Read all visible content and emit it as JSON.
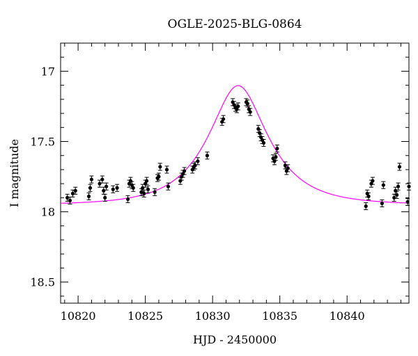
{
  "chart_data": {
    "type": "scatter",
    "title": "OGLE-2025-BLG-0864",
    "xlabel": "HJD - 2450000",
    "ylabel": "I magnitude",
    "xlim": [
      10818.7,
      10844.6
    ],
    "ylim": [
      18.65,
      16.8
    ],
    "y_inverted": true,
    "grid": false,
    "x_ticks": [
      "10820",
      "10825",
      "10830",
      "10835",
      "10840"
    ],
    "y_ticks": [
      "17",
      "17.5",
      "18",
      "18.5"
    ],
    "colors": {
      "points": "#000000",
      "model": "#ff00ff"
    },
    "series": [
      {
        "type": "scatter_errorbars",
        "x": [
          10819.2,
          10819.4,
          10819.6,
          10819.8,
          10820.8,
          10820.9,
          10821.0,
          10821.6,
          10821.8,
          10821.9,
          10822.0,
          10822.1,
          10822.6,
          10822.9,
          10823.7,
          10823.8,
          10823.9,
          10824.0,
          10824.1,
          10824.7,
          10824.8,
          10824.9,
          10825.0,
          10825.1,
          10825.2,
          10825.7,
          10825.9,
          10826.0,
          10826.1,
          10826.6,
          10826.7,
          10827.6,
          10827.7,
          10827.8,
          10827.9,
          10828.5,
          10828.6,
          10828.7,
          10828.9,
          10829.6,
          10830.7,
          10830.8,
          10831.5,
          10831.6,
          10831.7,
          10831.8,
          10831.9,
          10832.5,
          10832.6,
          10832.7,
          10832.8,
          10833.4,
          10833.5,
          10833.6,
          10833.7,
          10833.8,
          10834.5,
          10834.6,
          10834.7,
          10834.8,
          10835.4,
          10835.5,
          10835.6,
          10841.4,
          10841.5,
          10841.6,
          10841.8,
          10841.9,
          10842.6,
          10842.7,
          10843.5,
          10843.6,
          10843.7,
          10843.8,
          10843.9,
          10844.5,
          10844.6
        ],
        "y": [
          17.9,
          17.92,
          17.87,
          17.85,
          17.89,
          17.83,
          17.77,
          17.8,
          17.77,
          17.85,
          17.9,
          17.82,
          17.84,
          17.83,
          17.91,
          17.8,
          17.78,
          17.81,
          17.83,
          17.86,
          17.83,
          17.87,
          17.8,
          17.78,
          17.84,
          17.86,
          17.76,
          17.75,
          17.68,
          17.7,
          17.82,
          17.78,
          17.75,
          17.73,
          17.71,
          17.7,
          17.68,
          17.67,
          17.64,
          17.6,
          17.36,
          17.34,
          17.22,
          17.24,
          17.26,
          17.27,
          17.25,
          17.22,
          17.23,
          17.27,
          17.29,
          17.41,
          17.44,
          17.47,
          17.49,
          17.51,
          17.62,
          17.64,
          17.61,
          17.55,
          17.67,
          17.71,
          17.69,
          17.96,
          17.87,
          17.89,
          17.8,
          17.78,
          17.94,
          17.81,
          17.9,
          17.85,
          17.88,
          17.82,
          17.68,
          17.93,
          17.82
        ],
        "yerr": 0.025
      },
      {
        "type": "model_curve",
        "t0": 10831.9,
        "u0": 0.5,
        "tE": 3.8,
        "baseline_mag": 17.95
      }
    ]
  }
}
